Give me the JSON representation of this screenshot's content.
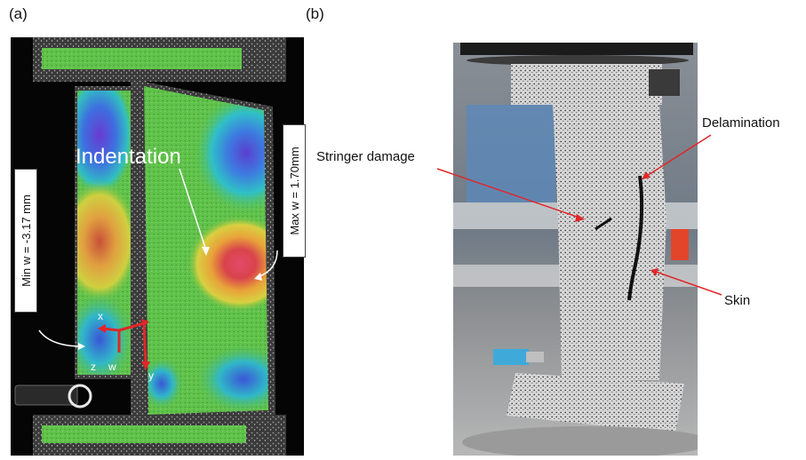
{
  "panel_a": {
    "label": "(a)",
    "indentation_label": "Indentation",
    "min_label": "Min w = -3.17 mm",
    "max_label": "Max w = 1.70mm",
    "axis_x": "x",
    "axis_y": "y",
    "axis_z": "z",
    "axis_w": "w"
  },
  "panel_b": {
    "label": "(b)",
    "callout_stringer": "Stringer damage",
    "callout_delamination": "Delamination",
    "callout_skin": "Skin"
  },
  "colors": {
    "speckle_bg": "#2c2c2c",
    "field_green": "#5fc24a",
    "field_red": "#d9444c",
    "field_blue": "#3a4fd0",
    "arrow_red": "#e0262a"
  }
}
